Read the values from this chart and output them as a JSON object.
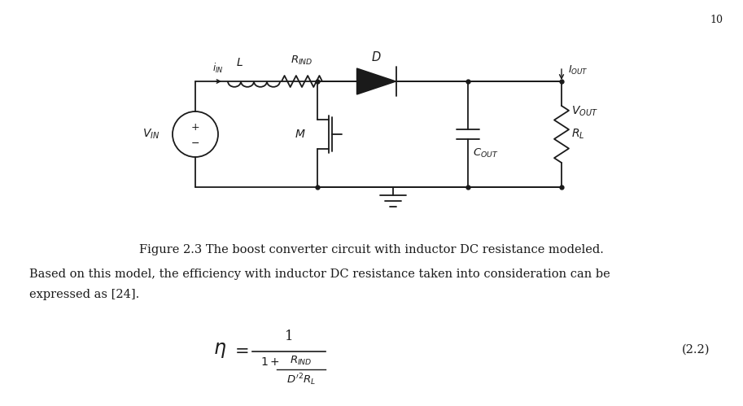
{
  "background_color": "#ffffff",
  "text_color": "#000000",
  "page_number": "10",
  "figure_caption": "Figure 2.3 The boost converter circuit with inductor DC resistance modeled.",
  "body_line1": "Based on this model, the efficiency with inductor DC resistance taken into consideration can be",
  "body_line2": "expressed as [24].",
  "eq_number": "(2.2)"
}
